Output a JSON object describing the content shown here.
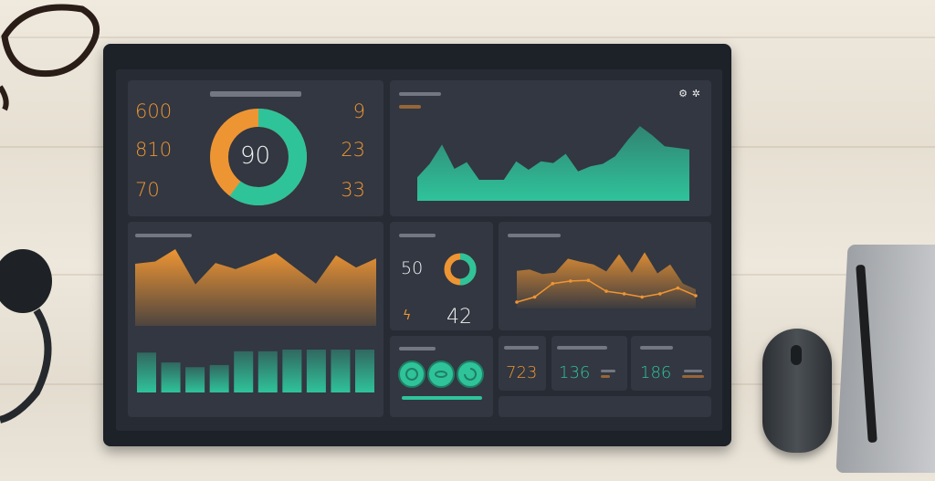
{
  "colors": {
    "accent_orange": "#ee9533",
    "accent_green": "#2fc39a",
    "panel": "#323741",
    "screen": "#272c34"
  },
  "score_panel": {
    "center_value": "90",
    "donut_green_fraction": 0.6,
    "left_values": [
      "600",
      "810",
      "70"
    ],
    "right_values": [
      "9",
      "23",
      "33"
    ]
  },
  "mini_panel": {
    "value_a": "50",
    "value_b": "42",
    "donut_green_fraction": 0.5
  },
  "stats": [
    {
      "value": "723"
    },
    {
      "value": "136"
    },
    {
      "value": "186"
    }
  ],
  "icons": [
    "gear-icon",
    "settings-icon",
    "spiral-icon"
  ],
  "chart_data": [
    {
      "type": "area",
      "values": [
        28,
        44,
        67,
        38,
        46,
        25,
        25,
        25,
        47,
        37,
        47,
        45,
        56,
        35,
        41,
        44,
        53,
        72,
        89,
        78,
        65,
        63,
        61
      ]
    },
    {
      "type": "area",
      "values": [
        81,
        84,
        100,
        54,
        82,
        74,
        84,
        95,
        75,
        55,
        92,
        76,
        88
      ]
    },
    {
      "type": "bar",
      "values": [
        93,
        70,
        59,
        64,
        96,
        96,
        100,
        100,
        100,
        100
      ]
    },
    {
      "type": "area+line",
      "series": [
        {
          "values": [
            59,
            61,
            54,
            56,
            78,
            73,
            69,
            58,
            85,
            56,
            88,
            55,
            69,
            39,
            30
          ]
        },
        {
          "values": [
            10,
            18,
            39,
            43,
            44,
            27,
            23,
            18,
            23,
            32,
            20
          ]
        }
      ]
    }
  ]
}
